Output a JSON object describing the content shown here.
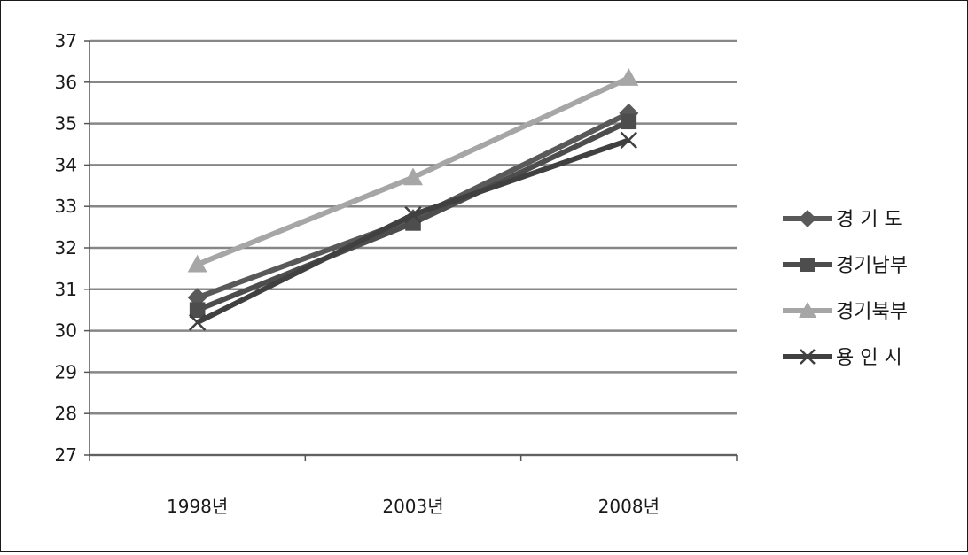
{
  "chart_data": {
    "type": "line",
    "title": "",
    "xlabel": "",
    "ylabel": "",
    "categories": [
      "1998년",
      "2003년",
      "2008년"
    ],
    "ylim": [
      27,
      37
    ],
    "yticks": [
      27,
      28,
      29,
      30,
      31,
      32,
      33,
      34,
      35,
      36,
      37
    ],
    "grid": true,
    "legend_position": "right",
    "series": [
      {
        "name": "경 기 도",
        "values": [
          30.8,
          32.7,
          35.25
        ],
        "color": "#595959",
        "marker": "diamond"
      },
      {
        "name": "경기남부",
        "values": [
          30.5,
          32.6,
          35.05
        ],
        "color": "#4d4d4d",
        "marker": "square"
      },
      {
        "name": "경기북부",
        "values": [
          31.6,
          33.7,
          36.1
        ],
        "color": "#a6a6a6",
        "marker": "triangle"
      },
      {
        "name": "용 인 시",
        "values": [
          30.2,
          32.8,
          34.6
        ],
        "color": "#404040",
        "marker": "x"
      }
    ]
  }
}
